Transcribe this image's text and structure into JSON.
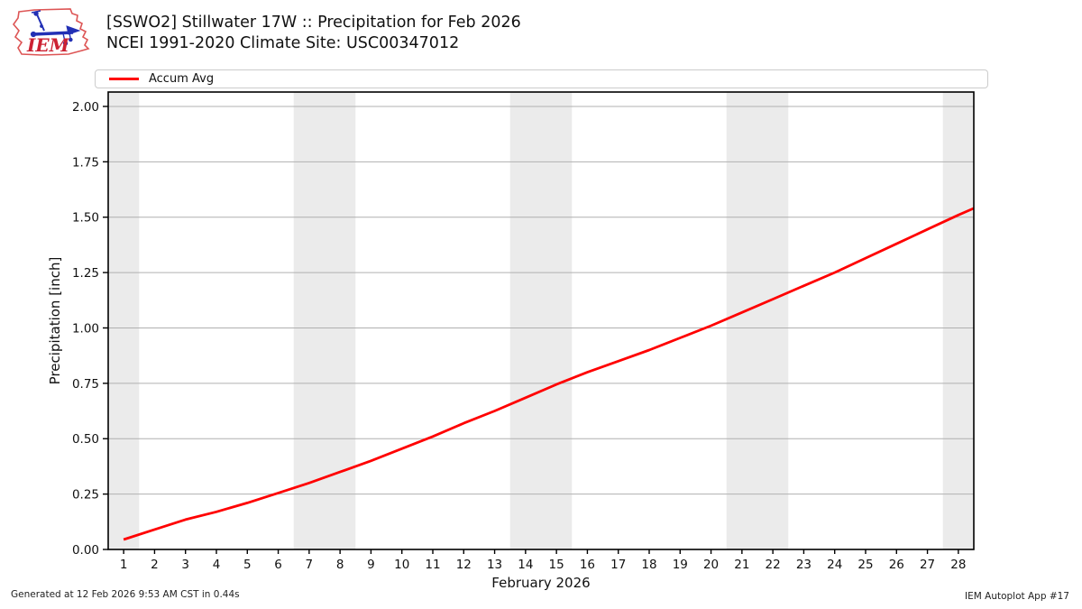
{
  "header": {
    "logo_text": "IEM",
    "title_line1": "[SSWO2] Stillwater 17W :: Precipitation for Feb 2026",
    "title_line2": "NCEI 1991-2020 Climate Site: USC00347012"
  },
  "legend": {
    "items": [
      {
        "label": "Accum Avg",
        "color": "#ff0000"
      }
    ]
  },
  "footer": {
    "left": "Generated at 12 Feb 2026 9:53 AM CST in 0.44s",
    "right": "IEM Autoplot App #17"
  },
  "colors": {
    "accent_line": "#ff0000",
    "weekend_band": "#ebebeb",
    "gridline": "#b0b0b0",
    "axis": "#000000",
    "logo_outline": "#dd5555",
    "logo_instrument": "#2230b5",
    "logo_text": "#cc2233"
  },
  "chart_data": {
    "type": "line",
    "title": "[SSWO2] Stillwater 17W :: Precipitation for Feb 2026",
    "subtitle": "NCEI 1991-2020 Climate Site: USC00347012",
    "xlabel": "February 2026",
    "ylabel": "Precipitation [inch]",
    "xlim": [
      0.5,
      28.5
    ],
    "ylim": [
      0,
      2.065
    ],
    "xticks": [
      1,
      2,
      3,
      4,
      5,
      6,
      7,
      8,
      9,
      10,
      11,
      12,
      13,
      14,
      15,
      16,
      17,
      18,
      19,
      20,
      21,
      22,
      23,
      24,
      25,
      26,
      27,
      28
    ],
    "yticks": [
      0.0,
      0.25,
      0.5,
      0.75,
      1.0,
      1.25,
      1.5,
      1.75,
      2.0
    ],
    "grid": "horizontal",
    "legend_position": "top",
    "weekend_bands": [
      [
        0.5,
        1.5
      ],
      [
        6.5,
        8.5
      ],
      [
        13.5,
        15.5
      ],
      [
        20.5,
        22.5
      ],
      [
        27.5,
        28.5
      ]
    ],
    "x": [
      1,
      2,
      3,
      4,
      5,
      6,
      7,
      8,
      9,
      10,
      11,
      12,
      13,
      14,
      15,
      16,
      17,
      18,
      19,
      20,
      21,
      22,
      23,
      24,
      25,
      26,
      27,
      28,
      28.5
    ],
    "series": [
      {
        "name": "Accum Avg",
        "color": "#ff0000",
        "values": [
          0.045,
          0.09,
          0.135,
          0.17,
          0.21,
          0.255,
          0.3,
          0.35,
          0.4,
          0.455,
          0.51,
          0.57,
          0.625,
          0.685,
          0.745,
          0.8,
          0.85,
          0.9,
          0.955,
          1.01,
          1.07,
          1.13,
          1.19,
          1.25,
          1.315,
          1.38,
          1.445,
          1.51,
          1.54
        ]
      }
    ]
  }
}
